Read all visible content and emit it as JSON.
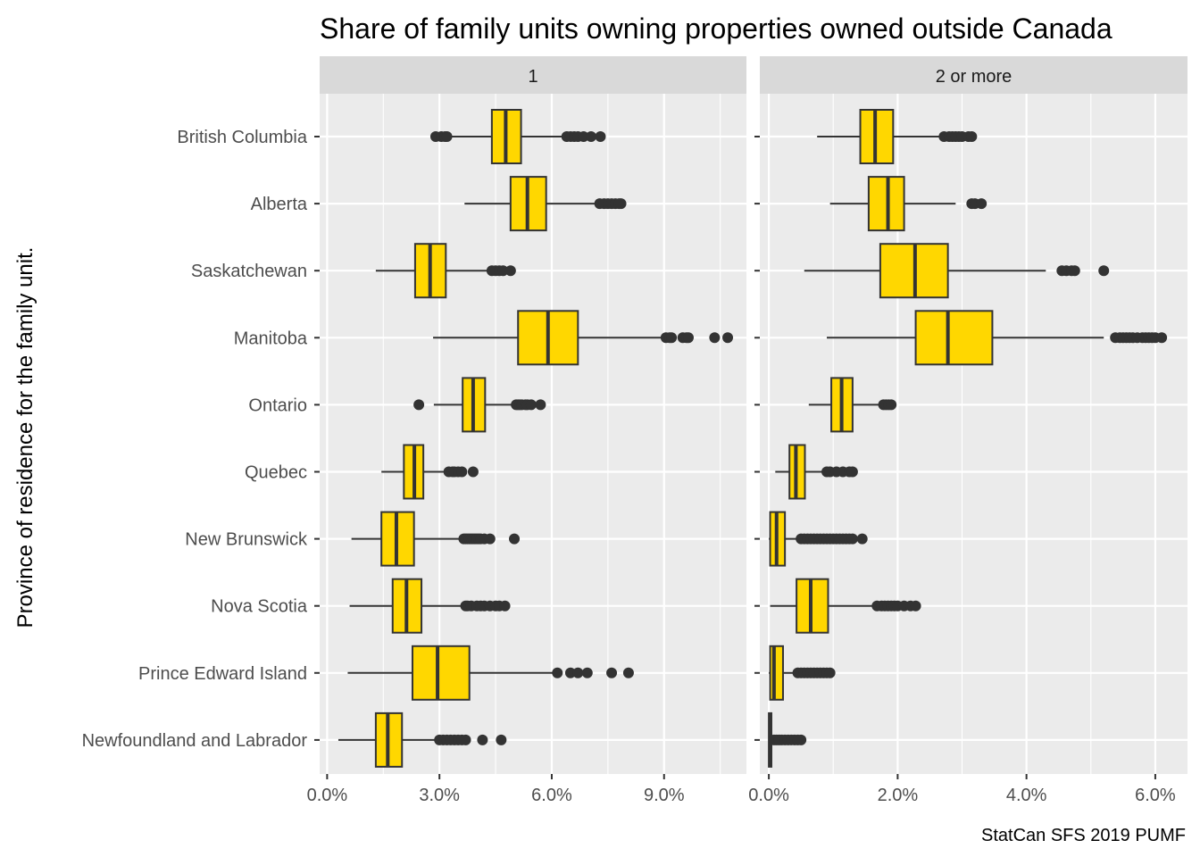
{
  "chart_data": {
    "type": "boxplot",
    "title": "Share of family units owning properties owned outside Canada",
    "ylabel": "Province of residence for the family unit.",
    "caption": "StatCan SFS 2019 PUMF",
    "categories": [
      "British Columbia",
      "Alberta",
      "Saskatchewan",
      "Manitoba",
      "Ontario",
      "Quebec",
      "New Brunswick",
      "Nova Scotia",
      "Prince Edward Island",
      "Newfoundland and Labrador"
    ],
    "fill_color": "#FFD700",
    "panel_background": "#EBEBEB",
    "strip_background": "#D9D9D9",
    "panels": [
      {
        "label": "1",
        "xlim": [
          -0.2,
          11.2
        ],
        "ticks": [
          0,
          3,
          6,
          9
        ],
        "tick_labels": [
          "0.0%",
          "3.0%",
          "6.0%",
          "9.0%"
        ],
        "boxes": [
          {
            "name": "British Columbia",
            "min": 2.95,
            "q1": 4.4,
            "median": 4.77,
            "q3": 5.18,
            "max": 6.33,
            "outliers": [
              2.9,
              3.05,
              3.15,
              3.2,
              6.4,
              6.5,
              6.6,
              6.7,
              6.85,
              7.05,
              7.3
            ]
          },
          {
            "name": "Alberta",
            "min": 3.67,
            "q1": 4.9,
            "median": 5.35,
            "q3": 5.85,
            "max": 7.25,
            "outliers": [
              7.28,
              7.4,
              7.5,
              7.6,
              7.7,
              7.8,
              7.85
            ]
          },
          {
            "name": "Saskatchewan",
            "min": 1.3,
            "q1": 2.35,
            "median": 2.75,
            "q3": 3.17,
            "max": 4.3,
            "outliers": [
              4.4,
              4.5,
              4.6,
              4.7,
              4.9
            ]
          },
          {
            "name": "Manitoba",
            "min": 2.83,
            "q1": 5.1,
            "median": 5.9,
            "q3": 6.7,
            "max": 9.05,
            "outliers": [
              9.05,
              9.15,
              9.2,
              9.5,
              9.6,
              9.65,
              10.35,
              10.7
            ]
          },
          {
            "name": "Ontario",
            "min": 2.85,
            "q1": 3.62,
            "median": 3.9,
            "q3": 4.22,
            "max": 5.0,
            "outliers": [
              2.45,
              5.05,
              5.1,
              5.15,
              5.2,
              5.3,
              5.35,
              5.45,
              5.7
            ]
          },
          {
            "name": "Quebec",
            "min": 1.45,
            "q1": 2.05,
            "median": 2.33,
            "q3": 2.57,
            "max": 3.25,
            "outliers": [
              3.25,
              3.35,
              3.4,
              3.5,
              3.6,
              3.9
            ]
          },
          {
            "name": "New Brunswick",
            "min": 0.65,
            "q1": 1.45,
            "median": 1.85,
            "q3": 2.32,
            "max": 3.6,
            "outliers": [
              3.65,
              3.7,
              3.75,
              3.8,
              3.85,
              3.9,
              3.95,
              4.0,
              4.05,
              4.1,
              4.2,
              4.35,
              5.0
            ]
          },
          {
            "name": "Nova Scotia",
            "min": 0.6,
            "q1": 1.75,
            "median": 2.12,
            "q3": 2.52,
            "max": 3.65,
            "outliers": [
              3.7,
              3.75,
              3.85,
              4.0,
              4.1,
              4.2,
              4.35,
              4.5,
              4.6,
              4.75
            ]
          },
          {
            "name": "Prince Edward Island",
            "min": 0.55,
            "q1": 2.28,
            "median": 2.95,
            "q3": 3.8,
            "max": 6.15,
            "outliers": [
              6.15,
              6.5,
              6.7,
              6.95,
              7.6,
              8.05
            ]
          },
          {
            "name": "Newfoundland and Labrador",
            "min": 0.3,
            "q1": 1.3,
            "median": 1.62,
            "q3": 2.0,
            "max": 2.98,
            "outliers": [
              3.0,
              3.1,
              3.2,
              3.3,
              3.4,
              3.5,
              3.6,
              3.7,
              4.15,
              4.65
            ]
          }
        ]
      },
      {
        "label": "2 or more",
        "xlim": [
          -0.14,
          6.5
        ],
        "ticks": [
          0,
          2,
          4,
          6
        ],
        "tick_labels": [
          "0.0%",
          "2.0%",
          "4.0%",
          "6.0%"
        ],
        "boxes": [
          {
            "name": "British Columbia",
            "min": 0.75,
            "q1": 1.42,
            "median": 1.65,
            "q3": 1.93,
            "max": 2.7,
            "outliers": [
              2.72,
              2.8,
              2.85,
              2.9,
              2.95,
              3.0,
              3.1,
              3.15
            ]
          },
          {
            "name": "Alberta",
            "min": 0.95,
            "q1": 1.55,
            "median": 1.85,
            "q3": 2.1,
            "max": 2.9,
            "outliers": [
              3.15,
              3.2,
              3.3
            ]
          },
          {
            "name": "Saskatchewan",
            "min": 0.55,
            "q1": 1.73,
            "median": 2.27,
            "q3": 2.78,
            "max": 4.3,
            "outliers": [
              4.55,
              4.62,
              4.7,
              4.75,
              5.2
            ]
          },
          {
            "name": "Manitoba",
            "min": 0.9,
            "q1": 2.28,
            "median": 2.78,
            "q3": 3.47,
            "max": 5.2,
            "outliers": [
              5.38,
              5.45,
              5.5,
              5.55,
              5.6,
              5.65,
              5.72,
              5.8,
              5.85,
              5.9,
              5.95,
              6.0,
              6.1
            ]
          },
          {
            "name": "Ontario",
            "min": 0.62,
            "q1": 0.97,
            "median": 1.13,
            "q3": 1.3,
            "max": 1.75,
            "outliers": [
              1.78,
              1.82,
              1.86,
              1.9
            ]
          },
          {
            "name": "Quebec",
            "min": 0.1,
            "q1": 0.32,
            "median": 0.42,
            "q3": 0.56,
            "max": 0.87,
            "outliers": [
              0.9,
              0.95,
              1.05,
              1.15,
              1.25,
              1.3
            ]
          },
          {
            "name": "New Brunswick",
            "min": 0.0,
            "q1": 0.02,
            "median": 0.12,
            "q3": 0.25,
            "max": 0.48,
            "outliers": [
              0.5,
              0.55,
              0.6,
              0.65,
              0.7,
              0.75,
              0.8,
              0.85,
              0.9,
              0.95,
              1.0,
              1.05,
              1.1,
              1.15,
              1.2,
              1.25,
              1.3,
              1.45
            ]
          },
          {
            "name": "Nova Scotia",
            "min": 0.02,
            "q1": 0.43,
            "median": 0.65,
            "q3": 0.92,
            "max": 1.6,
            "outliers": [
              1.68,
              1.75,
              1.8,
              1.85,
              1.9,
              1.95,
              2.0,
              2.1,
              2.2,
              2.28
            ]
          },
          {
            "name": "Prince Edward Island",
            "min": 0.0,
            "q1": 0.02,
            "median": 0.08,
            "q3": 0.22,
            "max": 0.42,
            "outliers": [
              0.45,
              0.5,
              0.55,
              0.6,
              0.65,
              0.7,
              0.75,
              0.8,
              0.85,
              0.9,
              0.95
            ]
          },
          {
            "name": "Newfoundland and Labrador",
            "min": 0.0,
            "q1": 0.0,
            "median": 0.02,
            "q3": 0.04,
            "max": 0.05,
            "outliers": [
              0.08,
              0.12,
              0.16,
              0.2,
              0.25,
              0.3,
              0.35,
              0.4,
              0.45,
              0.5
            ]
          }
        ]
      }
    ]
  }
}
